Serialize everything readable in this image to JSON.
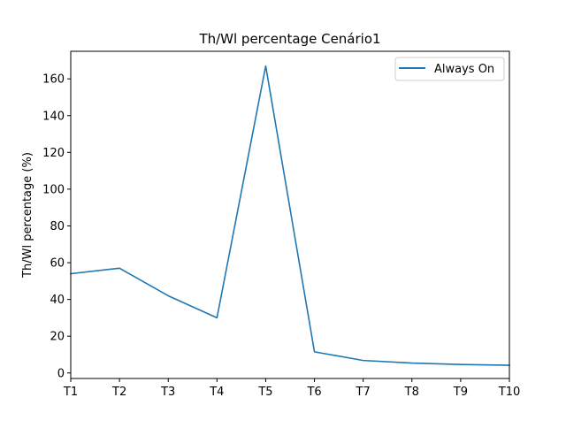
{
  "chart_data": {
    "type": "line",
    "title": "Th/Wl percentage Cenário1",
    "xlabel": "",
    "ylabel": "Th/Wl percentage (%)",
    "categories": [
      "T1",
      "T2",
      "T3",
      "T4",
      "T5",
      "T6",
      "T7",
      "T8",
      "T9",
      "T10"
    ],
    "series": [
      {
        "name": "Always On",
        "color": "#1f77b4",
        "values": [
          54,
          57,
          42,
          30,
          167,
          11.5,
          6.8,
          5.4,
          4.6,
          4.2
        ]
      }
    ],
    "ylim": [
      -3,
      175
    ],
    "yticks": [
      0,
      20,
      40,
      60,
      80,
      100,
      120,
      140,
      160
    ],
    "grid": false,
    "legend_position": "top-right"
  }
}
